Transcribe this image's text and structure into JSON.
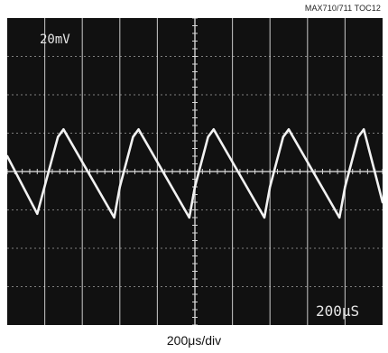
{
  "header": {
    "toc_label": "MAX710/711 TOC12"
  },
  "caption": {
    "x_scale": "200μs/div"
  },
  "colors": {
    "screen": "#111111",
    "trace": "#f2f2f2",
    "grid": "#d8d8d8",
    "screen_text": "#e6e6e6"
  },
  "chart_data": {
    "type": "line",
    "title": "",
    "xlabel": "200μs/div",
    "ylabel": "",
    "grid": true,
    "divisions": {
      "x": 10,
      "y": 8
    },
    "xlim": [
      0,
      10
    ],
    "ylim": [
      -4,
      4
    ],
    "screen_labels": {
      "v_scale": "20mV",
      "t_scale": "200μS"
    },
    "series": [
      {
        "x": [
          0,
          0.8,
          1.35,
          1.5,
          2.85,
          3.0,
          3.35,
          3.5,
          4.85,
          5.0,
          5.35,
          5.5,
          6.85,
          7.0,
          7.35,
          7.5,
          8.85,
          9.0,
          9.35,
          9.5,
          10.0
        ],
        "y": [
          0.4,
          -1.1,
          0.9,
          1.1,
          -1.2,
          -0.4,
          0.9,
          1.1,
          -1.2,
          -0.4,
          0.9,
          1.1,
          -1.2,
          -0.4,
          0.9,
          1.1,
          -1.2,
          -0.4,
          0.9,
          1.1,
          -0.8
        ]
      }
    ]
  }
}
